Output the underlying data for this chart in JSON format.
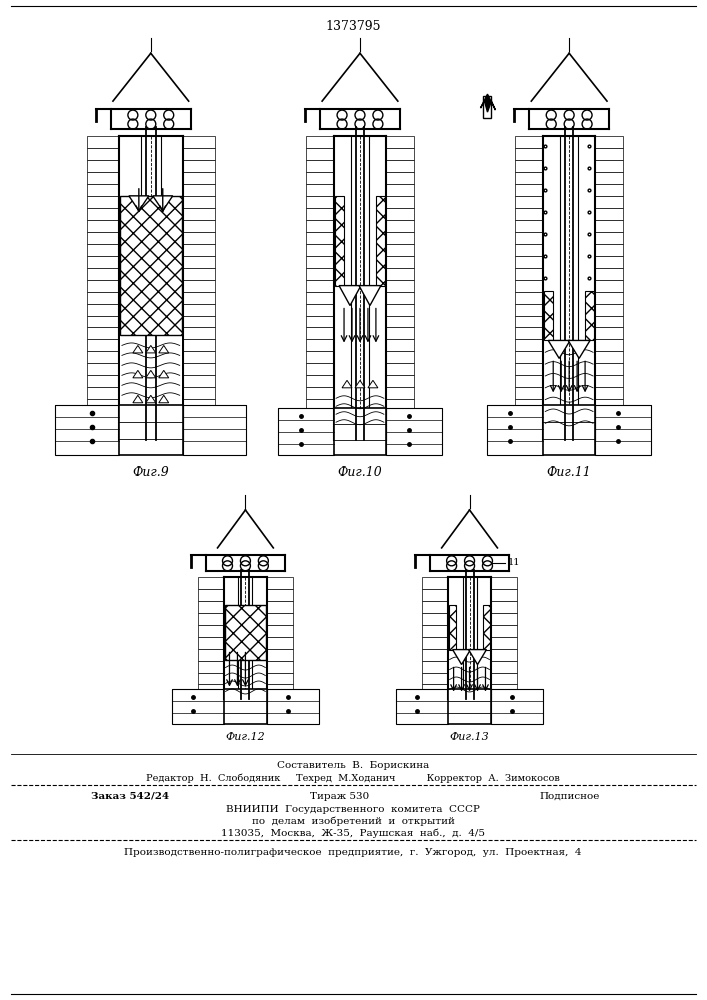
{
  "patent_number": "1373795",
  "fig_labels": [
    "Фиг.9",
    "Фиг.10",
    "Фиг.11",
    "Фиг.12",
    "Фиг.13"
  ],
  "footer_lines": [
    "Составитель  В.  Борискина",
    "Редактор  Н.  Слободяник     Техред  М.Ходанич          Корректор  А.  Зимокосов",
    "Заказ  542/24                    Тираж  530                        Подписное",
    "ВНИИПИ  Государственного  комитета  СССР",
    "по  делам  изобретений  и  открытий",
    "113035,  Москва,  Ж-35,  Раушская  наб.,  д.  4/5",
    "Производственно-полиграфическое  предприятие,  г.  Ужгород,  ул.  Проектная,  4"
  ],
  "bg_color": "#ffffff",
  "line_color": "#000000"
}
